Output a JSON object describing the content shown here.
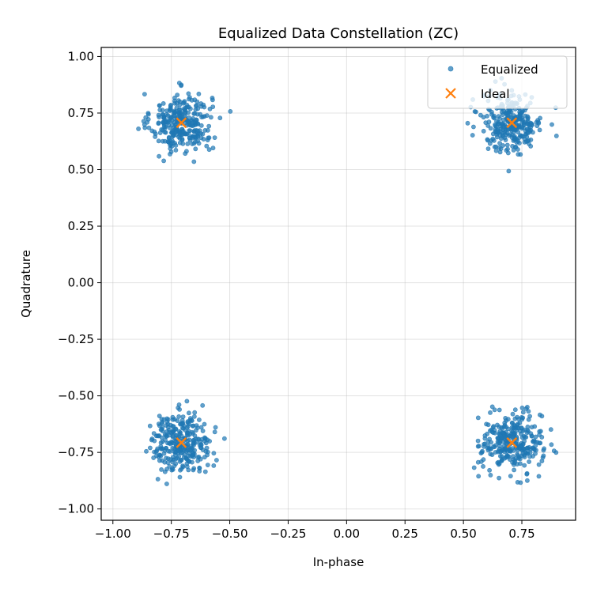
{
  "chart_data": {
    "type": "scatter",
    "title": "Equalized Data Constellation (ZC)",
    "xlabel": "In-phase",
    "ylabel": "Quadrature",
    "xlim": [
      -1.05,
      0.98
    ],
    "ylim": [
      -1.05,
      1.04
    ],
    "xticks": [
      -1.0,
      -0.75,
      -0.5,
      -0.25,
      0.0,
      0.25,
      0.5,
      0.75
    ],
    "xtick_labels": [
      "−1.00",
      "−0.75",
      "−0.50",
      "−0.25",
      "0.00",
      "0.25",
      "0.50",
      "0.75"
    ],
    "yticks": [
      1.0,
      0.75,
      0.5,
      0.25,
      0.0,
      -0.25,
      -0.5,
      -0.75,
      -1.0
    ],
    "ytick_labels": [
      "1.00",
      "0.75",
      "0.50",
      "0.25",
      "0.00",
      "−0.25",
      "−0.50",
      "−0.75",
      "−1.00"
    ],
    "grid": true,
    "legend_position": "top-right",
    "series": [
      {
        "name": "Equalized",
        "marker": "dot",
        "color": "#1f77b4",
        "alpha": 0.7,
        "clusters": [
          {
            "center": [
              -0.707,
              0.707
            ],
            "std": 0.065,
            "count": 300,
            "approx_extent": {
              "x": [
                -0.9,
                -0.52
              ],
              "y": [
                0.48,
                0.94
              ]
            }
          },
          {
            "center": [
              0.707,
              0.707
            ],
            "std": 0.065,
            "count": 300,
            "approx_extent": {
              "x": [
                0.53,
                0.9
              ],
              "y": [
                0.52,
                0.86
              ]
            }
          },
          {
            "center": [
              -0.707,
              -0.707
            ],
            "std": 0.065,
            "count": 300,
            "approx_extent": {
              "x": [
                -1.0,
                -0.5
              ],
              "y": [
                -0.87,
                -0.52
              ]
            }
          },
          {
            "center": [
              0.707,
              -0.707
            ],
            "std": 0.065,
            "count": 300,
            "approx_extent": {
              "x": [
                0.53,
                0.9
              ],
              "y": [
                -0.96,
                -0.5
              ]
            }
          }
        ]
      },
      {
        "name": "Ideal",
        "marker": "x",
        "color": "#ff7f0e",
        "points": [
          [
            -0.707,
            0.707
          ],
          [
            0.707,
            0.707
          ],
          [
            -0.707,
            -0.707
          ],
          [
            0.707,
            -0.707
          ]
        ]
      }
    ]
  }
}
